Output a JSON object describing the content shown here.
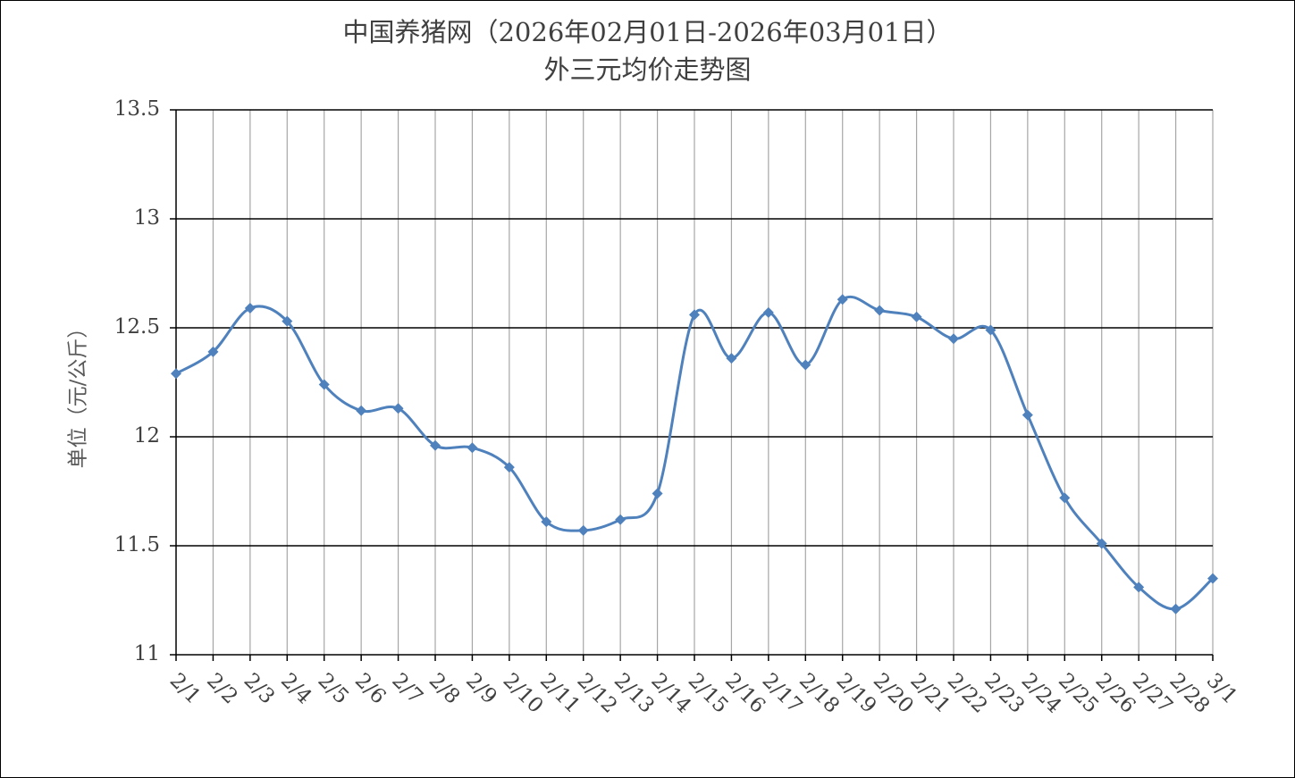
{
  "chart_data": {
    "type": "line",
    "title": "中国养猪网（2026年02月01日-2026年03月01日）",
    "subtitle": "外三元均价走势图",
    "xlabel": "",
    "ylabel": "单位（元/公斤）",
    "ylim": [
      11,
      13.5
    ],
    "yticks": [
      "11",
      "11.5",
      "12",
      "12.5",
      "13",
      "13.5"
    ],
    "ytick_values": [
      11,
      11.5,
      12,
      12.5,
      13,
      13.5
    ],
    "grid": true,
    "smooth": true,
    "marker": "diamond",
    "line_color": "#4F81BD",
    "categories": [
      "2/1",
      "2/2",
      "2/3",
      "2/4",
      "2/5",
      "2/6",
      "2/7",
      "2/8",
      "2/9",
      "2/10",
      "2/11",
      "2/12",
      "2/13",
      "2/14",
      "2/15",
      "2/16",
      "2/17",
      "2/18",
      "2/19",
      "2/20",
      "2/21",
      "2/22",
      "2/23",
      "2/24",
      "2/25",
      "2/26",
      "2/27",
      "2/28",
      "3/1"
    ],
    "values": [
      12.29,
      12.39,
      12.59,
      12.53,
      12.24,
      12.12,
      12.13,
      11.96,
      11.95,
      11.86,
      11.61,
      11.57,
      11.62,
      11.74,
      12.56,
      12.36,
      12.57,
      12.33,
      12.63,
      12.58,
      12.55,
      12.45,
      12.49,
      12.1,
      11.72,
      11.51,
      11.31,
      11.21,
      11.35
    ]
  }
}
